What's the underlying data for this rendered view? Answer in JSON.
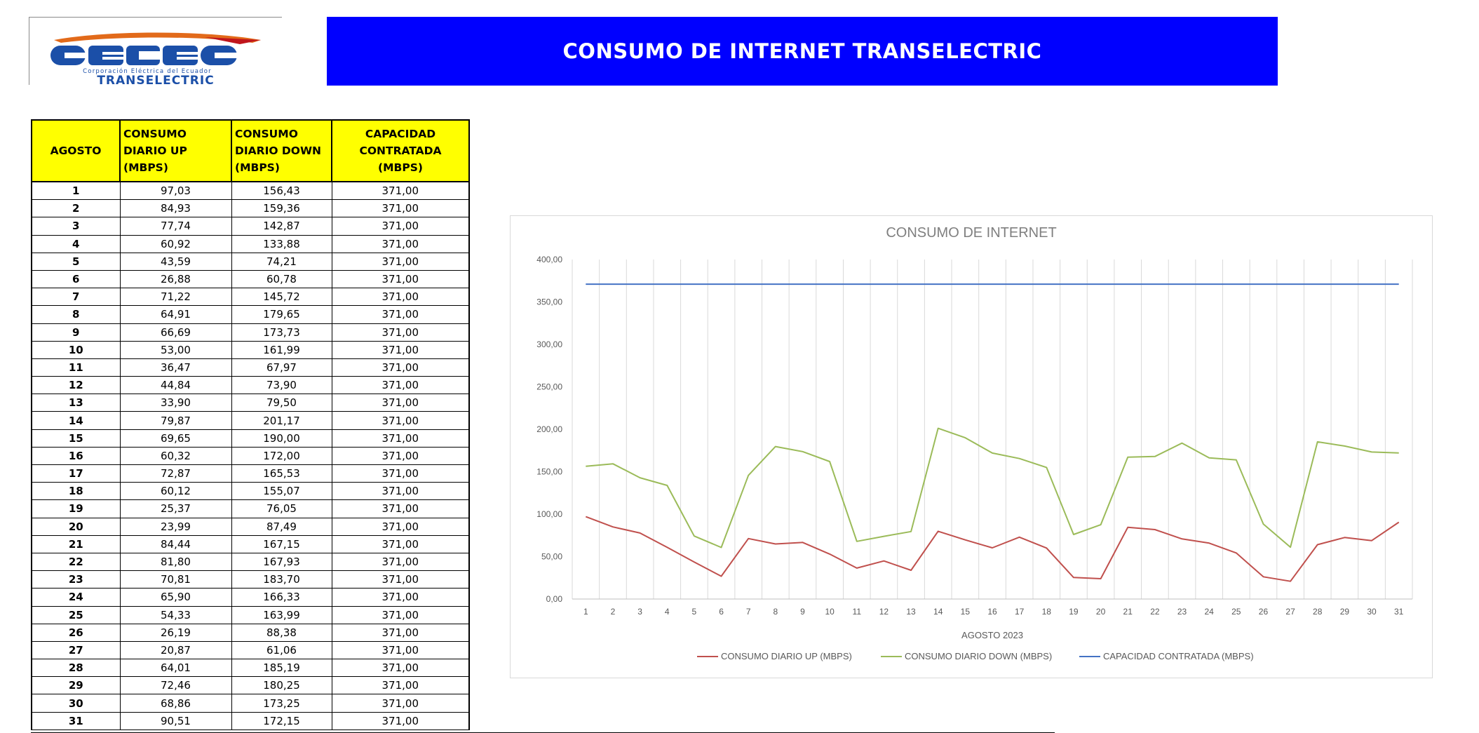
{
  "logo": {
    "brand": "CELEC",
    "subtitle": "Corporación Eléctrica del Ecuador",
    "unit": "TRANSELECTRIC"
  },
  "banner": {
    "title": "CONSUMO DE INTERNET TRANSELECTRIC"
  },
  "table": {
    "headers": [
      "AGOSTO",
      "CONSUMO DIARIO UP (MBPS)",
      "CONSUMO DIARIO DOWN (MBPS)",
      "CAPACIDAD CONTRATADA (MBPS)"
    ],
    "rows": [
      [
        "1",
        "97,03",
        "156,43",
        "371,00"
      ],
      [
        "2",
        "84,93",
        "159,36",
        "371,00"
      ],
      [
        "3",
        "77,74",
        "142,87",
        "371,00"
      ],
      [
        "4",
        "60,92",
        "133,88",
        "371,00"
      ],
      [
        "5",
        "43,59",
        "74,21",
        "371,00"
      ],
      [
        "6",
        "26,88",
        "60,78",
        "371,00"
      ],
      [
        "7",
        "71,22",
        "145,72",
        "371,00"
      ],
      [
        "8",
        "64,91",
        "179,65",
        "371,00"
      ],
      [
        "9",
        "66,69",
        "173,73",
        "371,00"
      ],
      [
        "10",
        "53,00",
        "161,99",
        "371,00"
      ],
      [
        "11",
        "36,47",
        "67,97",
        "371,00"
      ],
      [
        "12",
        "44,84",
        "73,90",
        "371,00"
      ],
      [
        "13",
        "33,90",
        "79,50",
        "371,00"
      ],
      [
        "14",
        "79,87",
        "201,17",
        "371,00"
      ],
      [
        "15",
        "69,65",
        "190,00",
        "371,00"
      ],
      [
        "16",
        "60,32",
        "172,00",
        "371,00"
      ],
      [
        "17",
        "72,87",
        "165,53",
        "371,00"
      ],
      [
        "18",
        "60,12",
        "155,07",
        "371,00"
      ],
      [
        "19",
        "25,37",
        "76,05",
        "371,00"
      ],
      [
        "20",
        "23,99",
        "87,49",
        "371,00"
      ],
      [
        "21",
        "84,44",
        "167,15",
        "371,00"
      ],
      [
        "22",
        "81,80",
        "167,93",
        "371,00"
      ],
      [
        "23",
        "70,81",
        "183,70",
        "371,00"
      ],
      [
        "24",
        "65,90",
        "166,33",
        "371,00"
      ],
      [
        "25",
        "54,33",
        "163,99",
        "371,00"
      ],
      [
        "26",
        "26,19",
        "88,38",
        "371,00"
      ],
      [
        "27",
        "20,87",
        "61,06",
        "371,00"
      ],
      [
        "28",
        "64,01",
        "185,19",
        "371,00"
      ],
      [
        "29",
        "72,46",
        "180,25",
        "371,00"
      ],
      [
        "30",
        "68,86",
        "173,25",
        "371,00"
      ],
      [
        "31",
        "90,51",
        "172,15",
        "371,00"
      ]
    ]
  },
  "chart_data": {
    "type": "line",
    "title": "CONSUMO DE INTERNET",
    "xlabel": "AGOSTO 2023",
    "ylabel": "",
    "ylim": [
      0,
      400
    ],
    "yticks": [
      "0,00",
      "50,00",
      "100,00",
      "150,00",
      "200,00",
      "250,00",
      "300,00",
      "350,00",
      "400,00"
    ],
    "x": [
      "1",
      "2",
      "3",
      "4",
      "5",
      "6",
      "7",
      "8",
      "9",
      "10",
      "11",
      "12",
      "13",
      "14",
      "15",
      "16",
      "17",
      "18",
      "19",
      "20",
      "21",
      "22",
      "23",
      "24",
      "25",
      "26",
      "27",
      "28",
      "29",
      "30",
      "31"
    ],
    "grid": "vertical",
    "legend": "bottom",
    "series": [
      {
        "name": "CONSUMO DIARIO UP (MBPS)",
        "color": "#c0504d",
        "values": [
          97.03,
          84.93,
          77.74,
          60.92,
          43.59,
          26.88,
          71.22,
          64.91,
          66.69,
          53.0,
          36.47,
          44.84,
          33.9,
          79.87,
          69.65,
          60.32,
          72.87,
          60.12,
          25.37,
          23.99,
          84.44,
          81.8,
          70.81,
          65.9,
          54.33,
          26.19,
          20.87,
          64.01,
          72.46,
          68.86,
          90.51
        ]
      },
      {
        "name": "CONSUMO DIARIO DOWN (MBPS)",
        "color": "#9bbb59",
        "values": [
          156.43,
          159.36,
          142.87,
          133.88,
          74.21,
          60.78,
          145.72,
          179.65,
          173.73,
          161.99,
          67.97,
          73.9,
          79.5,
          201.17,
          190.0,
          172.0,
          165.53,
          155.07,
          76.05,
          87.49,
          167.15,
          167.93,
          183.7,
          166.33,
          163.99,
          88.38,
          61.06,
          185.19,
          180.25,
          173.25,
          172.15
        ]
      },
      {
        "name": "CAPACIDAD CONTRATADA (MBPS)",
        "color": "#4472c4",
        "values": [
          371,
          371,
          371,
          371,
          371,
          371,
          371,
          371,
          371,
          371,
          371,
          371,
          371,
          371,
          371,
          371,
          371,
          371,
          371,
          371,
          371,
          371,
          371,
          371,
          371,
          371,
          371,
          371,
          371,
          371,
          371
        ]
      }
    ]
  }
}
